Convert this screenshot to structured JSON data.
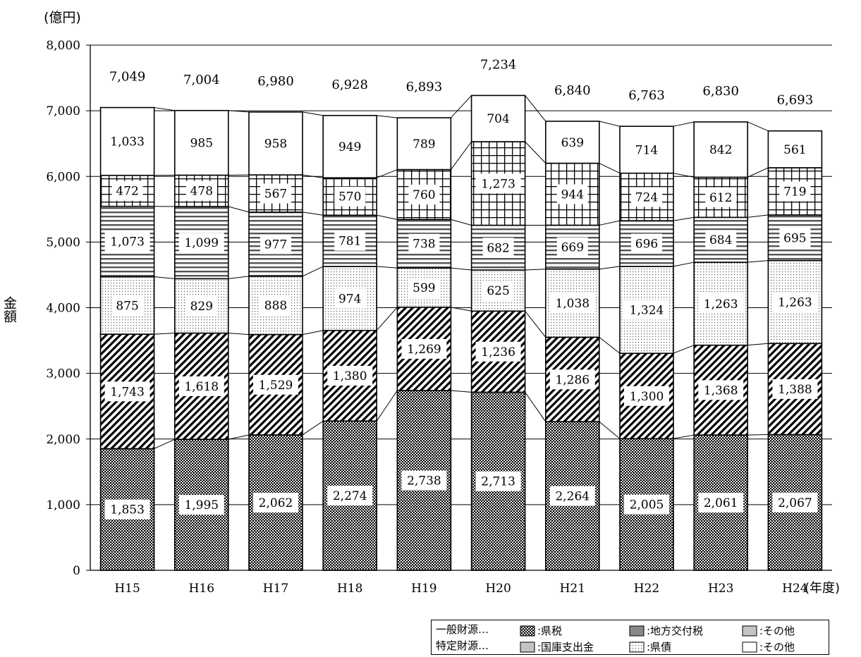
{
  "unit_label": "(億円)",
  "ylabel": "金額",
  "year_suffix": "(年度)",
  "chart_data": {
    "type": "bar",
    "stacked": true,
    "categories": [
      "H15",
      "H16",
      "H17",
      "H18",
      "H19",
      "H20",
      "H21",
      "H22",
      "H23",
      "H24"
    ],
    "ylim": [
      0,
      8000
    ],
    "yticks": [
      0,
      1000,
      2000,
      3000,
      4000,
      5000,
      6000,
      7000,
      8000
    ],
    "ytick_labels": [
      "0",
      "1,000",
      "2,000",
      "3,000",
      "4,000",
      "5,000",
      "6,000",
      "7,000",
      "8,000"
    ],
    "grid": true,
    "totals": [
      7049,
      7004,
      6980,
      6928,
      6893,
      7234,
      6840,
      6763,
      6830,
      6693
    ],
    "total_labels": [
      "7,049",
      "7,004",
      "6,980",
      "6,928",
      "6,893",
      "7,234",
      "6,840",
      "6,763",
      "6,830",
      "6,693"
    ],
    "series": [
      {
        "name": "県税",
        "pattern": "dots-dense",
        "values": [
          1853,
          1995,
          2062,
          2274,
          2738,
          2713,
          2264,
          2005,
          2061,
          2067
        ],
        "labels": [
          "1,853",
          "1,995",
          "2,062",
          "2,274",
          "2,738",
          "2,713",
          "2,264",
          "2,005",
          "2,061",
          "2,067"
        ]
      },
      {
        "name": "地方交付税",
        "pattern": "diag-dense",
        "values": [
          1743,
          1618,
          1529,
          1380,
          1269,
          1236,
          1286,
          1300,
          1368,
          1388
        ],
        "labels": [
          "1,743",
          "1,618",
          "1,529",
          "1,380",
          "1,269",
          "1,236",
          "1,286",
          "1,300",
          "1,368",
          "1,388"
        ]
      },
      {
        "name": "県債",
        "pattern": "dots-light",
        "values": [
          875,
          829,
          888,
          974,
          599,
          625,
          1038,
          1324,
          1263,
          1263
        ],
        "labels": [
          "875",
          "829",
          "888",
          "974",
          "599",
          "625",
          "1,038",
          "1,324",
          "1,263",
          "1,263"
        ]
      },
      {
        "name": "国庫支出金",
        "pattern": "hlines",
        "values": [
          1073,
          1099,
          977,
          781,
          738,
          682,
          669,
          696,
          684,
          695
        ],
        "labels": [
          "1,073",
          "1,099",
          "977",
          "781",
          "738",
          "682",
          "669",
          "696",
          "684",
          "695"
        ]
      },
      {
        "name": "その他(一般財源)",
        "pattern": "grid",
        "values": [
          472,
          478,
          567,
          570,
          760,
          1273,
          944,
          724,
          612,
          719
        ],
        "labels": [
          "472",
          "478",
          "567",
          "570",
          "760",
          "1,273",
          "944",
          "724",
          "612",
          "719"
        ]
      },
      {
        "name": "その他(特定財源)",
        "pattern": "white",
        "values": [
          1033,
          985,
          958,
          949,
          789,
          704,
          639,
          714,
          842,
          561
        ],
        "labels": [
          "1,033",
          "985",
          "958",
          "949",
          "789",
          "704",
          "639",
          "714",
          "842",
          "561"
        ]
      }
    ]
  },
  "legend": {
    "row1_label": "一般財源…",
    "row2_label": "特定財源…",
    "items": [
      {
        "text": ":県税",
        "pattern": "dots-dense"
      },
      {
        "text": ":地方交付税",
        "pattern": "gray"
      },
      {
        "text": ":その他",
        "pattern": "gray-light"
      },
      {
        "text": ":国庫支出金",
        "pattern": "gray-light"
      },
      {
        "text": ":県債",
        "pattern": "dots-light"
      },
      {
        "text": ":その他",
        "pattern": "white"
      }
    ]
  }
}
